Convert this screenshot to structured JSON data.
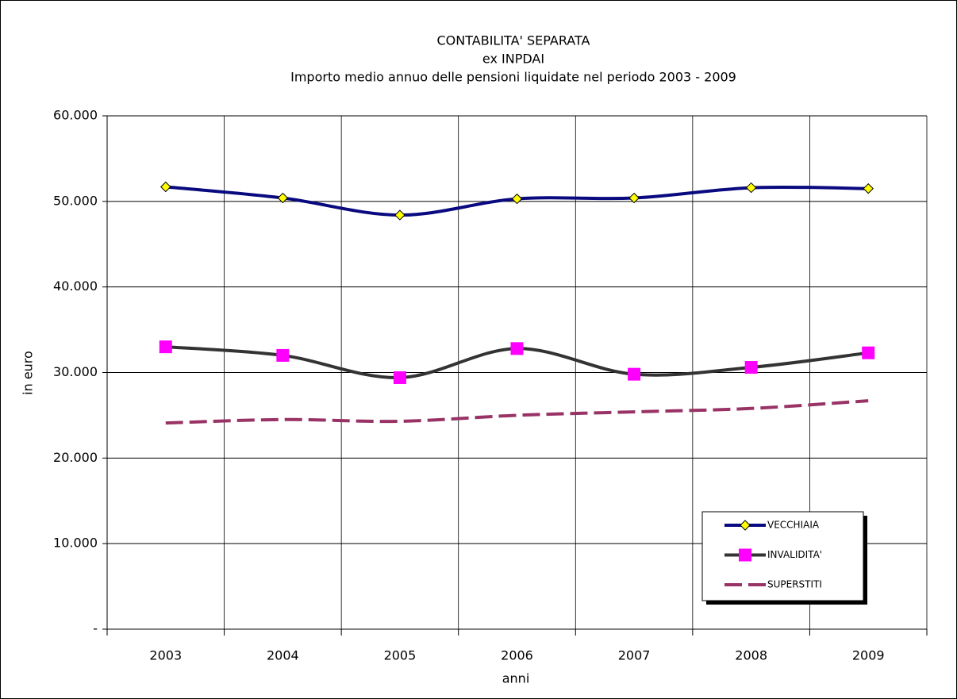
{
  "chart_data": {
    "type": "line",
    "title_lines": [
      "CONTABILITA' SEPARATA",
      "ex INPDAI",
      "Importo medio annuo delle pensioni liquidate nel periodo 2003 - 2009"
    ],
    "x_label": "anni",
    "y_label": "in euro",
    "categories": [
      "2003",
      "2004",
      "2005",
      "2006",
      "2007",
      "2008",
      "2009"
    ],
    "series": [
      {
        "name": "VECCHIAIA",
        "color": "#0a0a80",
        "marker": "diamond",
        "marker_color": "#ffff00",
        "dashed": false,
        "values": [
          51700,
          50400,
          48400,
          50300,
          50400,
          51600,
          51500
        ]
      },
      {
        "name": "INVALIDITA'",
        "color": "#333333",
        "marker": "square",
        "marker_color": "#ff00ff",
        "dashed": false,
        "values": [
          33000,
          32000,
          29400,
          32800,
          29800,
          30600,
          32300
        ]
      },
      {
        "name": "SUPERSTITI",
        "color": "#993366",
        "marker": null,
        "marker_color": null,
        "dashed": true,
        "values": [
          24100,
          24500,
          24300,
          25000,
          25400,
          25800,
          26700
        ]
      }
    ],
    "ylim": [
      0,
      60000
    ],
    "yticks": [
      {
        "value": 0,
        "label": "-"
      },
      {
        "value": 10000,
        "label": "10.000"
      },
      {
        "value": 20000,
        "label": "20.000"
      },
      {
        "value": 30000,
        "label": "30.000"
      },
      {
        "value": 40000,
        "label": "40.000"
      },
      {
        "value": 50000,
        "label": "50.000"
      },
      {
        "value": 60000,
        "label": "60.000"
      }
    ],
    "grid": true,
    "legend": "lower right"
  }
}
